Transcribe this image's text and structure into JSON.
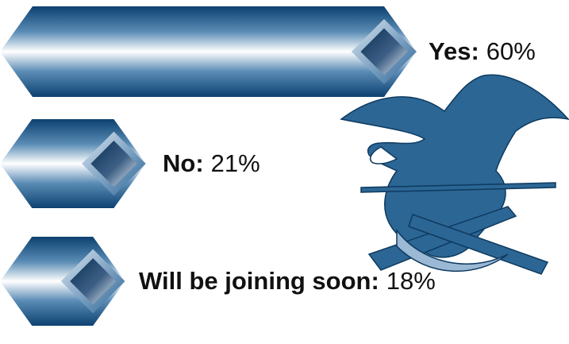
{
  "chart_data": {
    "type": "bar",
    "orientation": "horizontal",
    "categories": [
      "Yes:",
      "No:",
      "Will be joining soon:"
    ],
    "values": [
      60,
      21,
      18
    ],
    "value_labels": [
      "60%",
      "21%",
      "18%"
    ],
    "color": "#0f4e7e"
  }
}
